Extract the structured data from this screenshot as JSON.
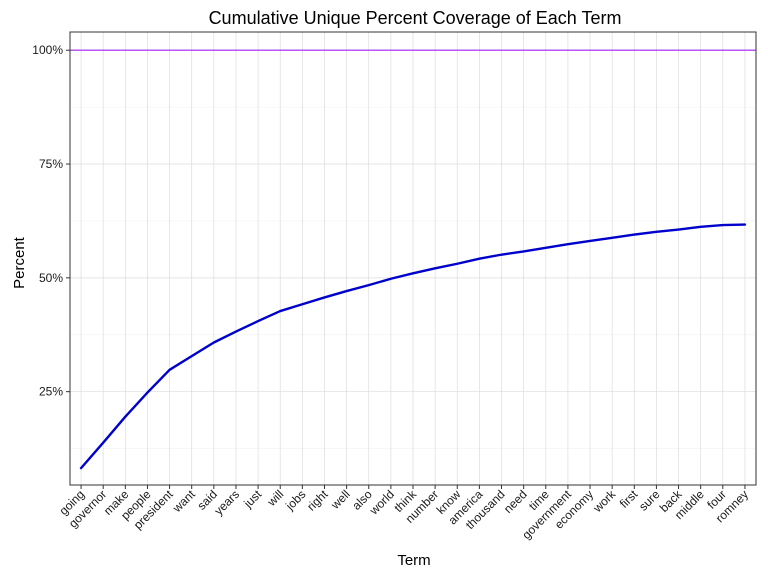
{
  "chart_data": {
    "type": "line",
    "title": "Cumulative Unique Percent Coverage of Each Term",
    "xlabel": "Term",
    "ylabel": "Percent",
    "categories": [
      "going",
      "governor",
      "make",
      "people",
      "president",
      "want",
      "said",
      "years",
      "just",
      "will",
      "jobs",
      "right",
      "well",
      "also",
      "world",
      "think",
      "number",
      "know",
      "america",
      "thousand",
      "need",
      "time",
      "government",
      "economy",
      "work",
      "first",
      "sure",
      "back",
      "middle",
      "four",
      "romney"
    ],
    "series": [
      {
        "values": [
          8.2,
          13.8,
          19.5,
          24.8,
          29.8,
          32.8,
          35.8,
          38.2,
          40.5,
          42.7,
          44.2,
          45.7,
          47.1,
          48.4,
          49.8,
          51.0,
          52.1,
          53.1,
          54.2,
          55.1,
          55.8,
          56.6,
          57.4,
          58.1,
          58.8,
          59.5,
          60.1,
          60.6,
          61.2,
          61.6,
          61.7
        ],
        "color": "#0000cd"
      }
    ],
    "reference_line": {
      "y": 100,
      "color": "#a020f0"
    },
    "yticks": [
      25,
      50,
      75,
      100
    ],
    "ytick_labels": [
      "25%",
      "50%",
      "75%",
      "100%"
    ],
    "ylim": [
      4.5,
      104
    ],
    "grid": true,
    "legend": "none"
  }
}
